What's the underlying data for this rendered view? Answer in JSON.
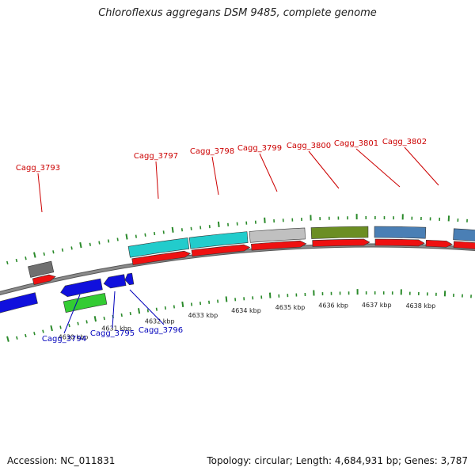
{
  "title": "Chloroflexus aggregans DSM 9485, complete genome",
  "footer": {
    "accession": "Accession: NC_011831",
    "summary": "Topology: circular; Length: 4,684,931 bp; Genes: 3,787"
  },
  "colors": {
    "forward_label": "#cc0000",
    "reverse_label": "#0000bb",
    "backbone": "#8a8a8a",
    "tick": "#2a8a2a",
    "cds_red": "#ee1111",
    "cds_blue": "#1010dd",
    "cyan": "#22cccc",
    "gray": "#c0c0c0",
    "dark_gray": "#707070",
    "olive": "#6b8e23",
    "steel_blue": "#4a7fb5",
    "green": "#33cc33"
  },
  "kbp_labels": [
    "4630 kbp",
    "4631 kbp",
    "4632 kbp",
    "4633 kbp",
    "4634 kbp",
    "4635 kbp",
    "4636 kbp",
    "4637 kbp",
    "4638 kbp"
  ],
  "forward_genes": [
    {
      "label": "Cagg_3793",
      "color": "dark_gray"
    },
    {
      "label": "Cagg_3797",
      "color": "cyan"
    },
    {
      "label": "Cagg_3798",
      "color": "cyan"
    },
    {
      "label": "Cagg_3799",
      "color": "gray"
    },
    {
      "label": "Cagg_3800",
      "color": "olive"
    },
    {
      "label": "Cagg_3801",
      "color": "steel_blue"
    },
    {
      "label": "Cagg_3802",
      "color": "steel_blue"
    }
  ],
  "reverse_genes": [
    {
      "label": "Cagg_3794",
      "color": "green"
    },
    {
      "label": "Cagg_3795",
      "color": "cds_blue"
    },
    {
      "label": "Cagg_3796",
      "color": "cds_blue"
    }
  ]
}
